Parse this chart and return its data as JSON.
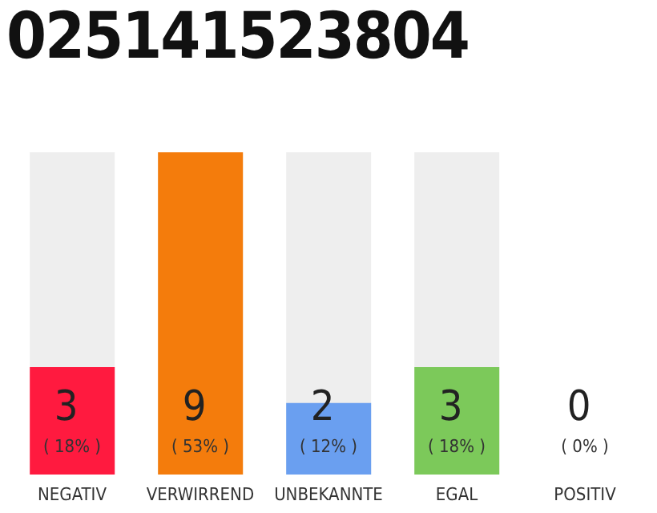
{
  "chart_data": {
    "type": "bar",
    "title": "025141523804",
    "categories": [
      "NEGATIV",
      "VERWIRREND",
      "UNBEKANNTE",
      "EGAL",
      "POSITIV"
    ],
    "values": [
      3,
      9,
      2,
      3,
      0
    ],
    "colors": [
      "#ff1a3f",
      "#f47c0c",
      "#6a9ff0",
      "#7cc95a",
      "#d0d0d0"
    ],
    "tick_labels": "x",
    "value_labels": [
      "3 ( 18% )",
      "9 ( 53% )",
      "2 ( 12% )",
      "3 ( 18% )",
      "0 ( 0% )"
    ]
  }
}
